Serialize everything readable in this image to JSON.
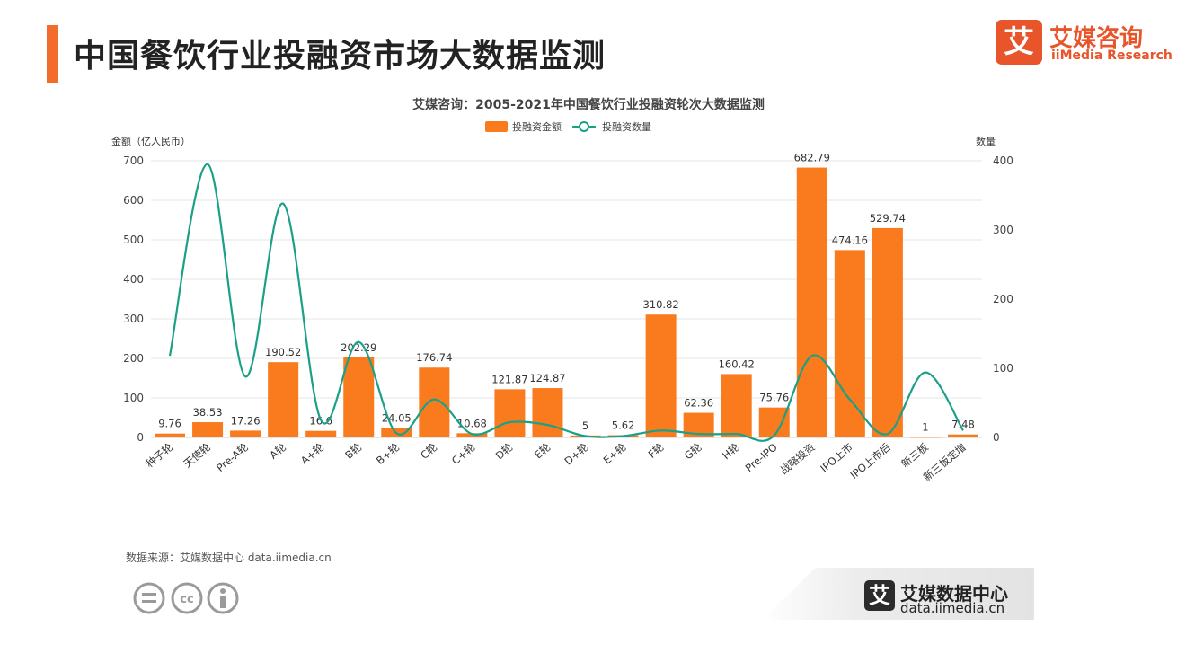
{
  "page": {
    "title": "中国餐饮行业投融资市场大数据监测",
    "logo_cn": "艾媒咨询",
    "logo_en": "iiMedia Research",
    "logo_mark": "艾",
    "source": "数据来源：艾媒数据中心 data.iimedia.cn",
    "footer_cn": "艾媒数据中心",
    "footer_url": "data.iimedia.cn",
    "footer_mark": "艾",
    "brand_color": "#e8552a",
    "cc_icons": [
      "equal-icon",
      "cc-icon",
      "person-icon"
    ]
  },
  "chart_data": {
    "type": "bar",
    "title": "艾媒咨询：2005-2021年中国餐饮行业投融资轮次大数据监测",
    "ylabel": "金额（亿人民币）",
    "y2label": "数量",
    "categories": [
      "种子轮",
      "天使轮",
      "Pre-A轮",
      "A轮",
      "A+轮",
      "B轮",
      "B+轮",
      "C轮",
      "C+轮",
      "D轮",
      "E轮",
      "D+轮",
      "E+轮",
      "F轮",
      "G轮",
      "H轮",
      "Pre-IPO",
      "战略投资",
      "IPO上市",
      "IPO上市后",
      "新三板",
      "新三板定增"
    ],
    "ylim": [
      0,
      700
    ],
    "yticks": [
      0,
      100,
      200,
      300,
      400,
      500,
      600,
      700
    ],
    "y2lim": [
      0,
      400
    ],
    "y2ticks": [
      0,
      100,
      200,
      300,
      400
    ],
    "grid": true,
    "legend_position": "top",
    "series": [
      {
        "name": "投融资金额",
        "type": "bar",
        "axis": "left",
        "color": "#fa7b1e",
        "values": [
          9.76,
          38.53,
          17.26,
          190.52,
          16.6,
          202.29,
          24.05,
          176.74,
          10.68,
          121.87,
          124.87,
          5,
          5.62,
          310.82,
          62.36,
          160.42,
          75.76,
          682.79,
          474.16,
          529.74,
          1,
          7.48
        ],
        "labels": [
          "9.76",
          "38.53",
          "17.26",
          "190.52",
          "16.6",
          "202.29",
          "24.05",
          "176.74",
          "10.68",
          "121.87",
          "124.87",
          "5",
          "5.62",
          "310.82",
          "62.36",
          "160.42",
          "75.76",
          "682.79",
          "474.16",
          "529.74",
          "1",
          "7.48"
        ]
      },
      {
        "name": "投融资数量",
        "type": "line",
        "axis": "right",
        "color": "#1aa087",
        "values": [
          118,
          395,
          88,
          338,
          25,
          138,
          6,
          55,
          5,
          22,
          18,
          2,
          2,
          10,
          5,
          5,
          3,
          118,
          55,
          5,
          94,
          10
        ]
      }
    ]
  }
}
